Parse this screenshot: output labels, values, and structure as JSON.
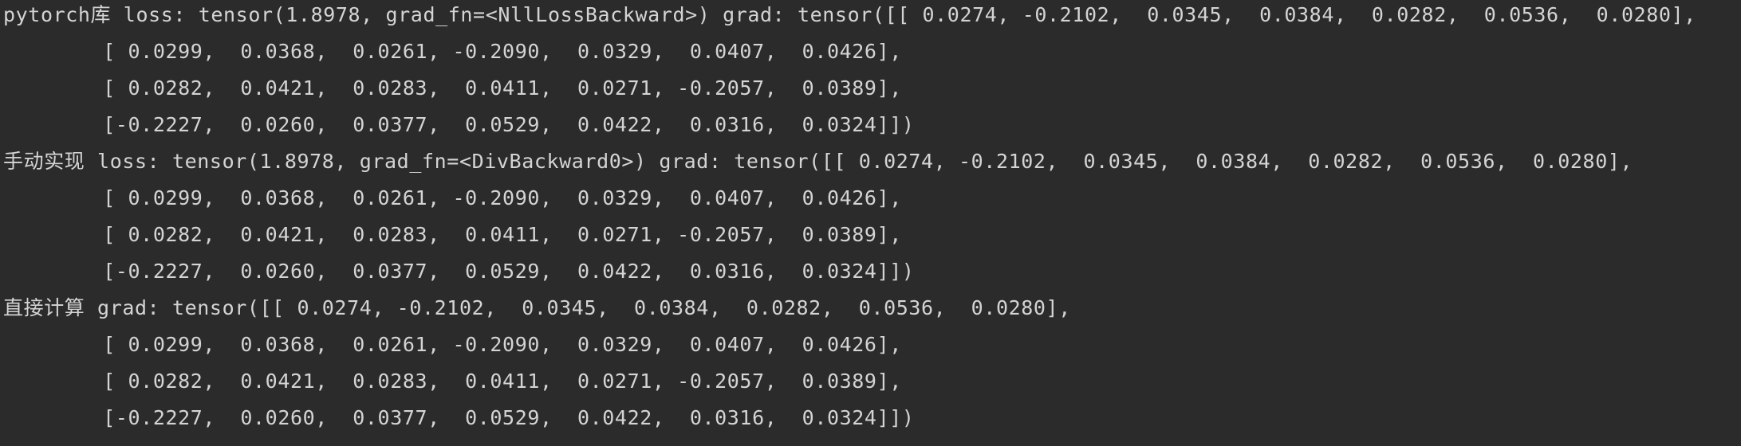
{
  "console": {
    "lines": [
      "pytorch库 loss: tensor(1.8978, grad_fn=<NllLossBackward>) grad: tensor([[ 0.0274, -0.2102,  0.0345,  0.0384,  0.0282,  0.0536,  0.0280],",
      "        [ 0.0299,  0.0368,  0.0261, -0.2090,  0.0329,  0.0407,  0.0426],",
      "        [ 0.0282,  0.0421,  0.0283,  0.0411,  0.0271, -0.2057,  0.0389],",
      "        [-0.2227,  0.0260,  0.0377,  0.0529,  0.0422,  0.0316,  0.0324]])",
      "手动实现 loss: tensor(1.8978, grad_fn=<DivBackward0>) grad: tensor([[ 0.0274, -0.2102,  0.0345,  0.0384,  0.0282,  0.0536,  0.0280],",
      "        [ 0.0299,  0.0368,  0.0261, -0.2090,  0.0329,  0.0407,  0.0426],",
      "        [ 0.0282,  0.0421,  0.0283,  0.0411,  0.0271, -0.2057,  0.0389],",
      "        [-0.2227,  0.0260,  0.0377,  0.0529,  0.0422,  0.0316,  0.0324]])",
      "直接计算 grad: tensor([[ 0.0274, -0.2102,  0.0345,  0.0384,  0.0282,  0.0536,  0.0280],",
      "        [ 0.0299,  0.0368,  0.0261, -0.2090,  0.0329,  0.0407,  0.0426],",
      "        [ 0.0282,  0.0421,  0.0283,  0.0411,  0.0271, -0.2057,  0.0389],",
      "        [-0.2227,  0.0260,  0.0377,  0.0529,  0.0422,  0.0316,  0.0324]])"
    ]
  },
  "colors": {
    "background": "#2b2b2b",
    "text": "#d4d4d4"
  }
}
